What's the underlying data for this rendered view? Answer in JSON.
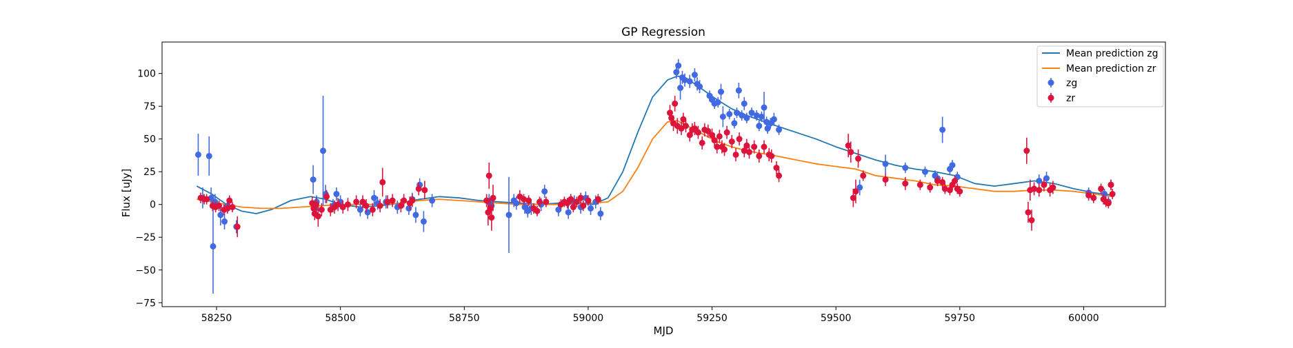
{
  "chart_data": {
    "type": "scatter",
    "title": "GP Regression",
    "xlabel": "MJD",
    "ylabel": "Flux [uJy]",
    "xlim": [
      58140,
      60165
    ],
    "ylim": [
      -78,
      124
    ],
    "xticks": [
      58250,
      58500,
      58750,
      59000,
      59250,
      59500,
      59750,
      60000
    ],
    "yticks": [
      -75,
      -50,
      -25,
      0,
      25,
      50,
      75,
      100
    ],
    "grid": false,
    "legend": "top-right",
    "colors": {
      "mean_zg": "#1f77b4",
      "mean_zr": "#ff7f0e",
      "points_zg": "#4169e1",
      "points_zr": "#dc143c"
    },
    "series": [
      {
        "name": "Mean prediction zg",
        "kind": "line",
        "x": [
          58210,
          58240,
          58270,
          58300,
          58330,
          58360,
          58400,
          58440,
          58470,
          58500,
          58540,
          58580,
          58620,
          58660,
          58700,
          58740,
          58780,
          58820,
          58860,
          58900,
          58940,
          58980,
          59010,
          59040,
          59070,
          59100,
          59130,
          59160,
          59180,
          59200,
          59230,
          59260,
          59290,
          59320,
          59350,
          59380,
          59420,
          59460,
          59500,
          59540,
          59580,
          59620,
          59660,
          59700,
          59740,
          59780,
          59820,
          59860,
          59900,
          59940,
          59980,
          60020,
          60060
        ],
        "y": [
          14,
          8,
          0,
          -5,
          -7,
          -4,
          3,
          6,
          4,
          0,
          -2,
          -1,
          1,
          4,
          6,
          5,
          3,
          2,
          1,
          0,
          1,
          1,
          0,
          5,
          25,
          55,
          82,
          95,
          98,
          96,
          88,
          80,
          73,
          68,
          64,
          60,
          55,
          50,
          44,
          39,
          34,
          30,
          27,
          25,
          22,
          16,
          14,
          16,
          18,
          16,
          12,
          9,
          7
        ]
      },
      {
        "name": "Mean prediction zr",
        "kind": "line",
        "x": [
          58210,
          58240,
          58270,
          58300,
          58340,
          58380,
          58420,
          58460,
          58500,
          58540,
          58580,
          58620,
          58660,
          58700,
          58740,
          58780,
          58820,
          58860,
          58900,
          58940,
          58980,
          59010,
          59040,
          59070,
          59100,
          59130,
          59160,
          59180,
          59200,
          59230,
          59260,
          59290,
          59320,
          59350,
          59380,
          59420,
          59460,
          59500,
          59540,
          59580,
          59620,
          59660,
          59700,
          59740,
          59780,
          59820,
          59860,
          59900,
          59940,
          59980,
          60020,
          60060
        ],
        "y": [
          4,
          2,
          0,
          -2,
          -3,
          -3,
          -2,
          -1,
          0,
          0,
          0,
          1,
          3,
          4,
          3,
          2,
          1,
          0,
          0,
          0,
          1,
          1,
          2,
          10,
          28,
          50,
          63,
          64,
          60,
          54,
          48,
          44,
          41,
          39,
          37,
          34,
          31,
          29,
          27,
          22,
          20,
          18,
          15,
          14,
          12,
          10,
          10,
          11,
          11,
          10,
          8,
          6
        ]
      },
      {
        "name": "zg",
        "kind": "errorbar",
        "x": [
          58213,
          58222,
          58235,
          58239,
          58243,
          58247,
          58258,
          58266,
          58272,
          58290,
          58445,
          58450,
          58452,
          58465,
          58470,
          58485,
          58492,
          58500,
          58540,
          58555,
          58568,
          58575,
          58592,
          58615,
          58638,
          58645,
          58652,
          58660,
          58668,
          58685,
          58800,
          58805,
          58840,
          58850,
          58855,
          58872,
          58878,
          58885,
          58905,
          58912,
          58940,
          58960,
          58972,
          58985,
          58995,
          59005,
          59015,
          59025,
          59178,
          59182,
          59186,
          59190,
          59195,
          59205,
          59215,
          59220,
          59225,
          59245,
          59250,
          59255,
          59262,
          59268,
          59272,
          59285,
          59295,
          59300,
          59304,
          59310,
          59315,
          59320,
          59330,
          59340,
          59345,
          59350,
          59355,
          59360,
          59362,
          59368,
          59375,
          59385,
          59548,
          59600,
          59640,
          59680,
          59700,
          59705,
          59715,
          59730,
          59735,
          59745,
          59910,
          59925,
          60010,
          60042,
          60050,
          60055
        ],
        "y": [
          38,
          5,
          37,
          5,
          -32,
          2,
          -8,
          -13,
          -1,
          -17,
          19,
          -3,
          2,
          41,
          8,
          -1,
          8,
          2,
          -4,
          -6,
          5,
          1,
          2,
          -2,
          -3,
          4,
          -8,
          15,
          -13,
          3,
          2,
          -1,
          -8,
          3,
          1,
          -2,
          -5,
          -3,
          0,
          10,
          -4,
          -6,
          2,
          -2,
          5,
          -3,
          2,
          -7,
          101,
          106,
          89,
          97,
          95,
          94,
          99,
          92,
          90,
          83,
          80,
          77,
          78,
          86,
          67,
          69,
          62,
          70,
          87,
          68,
          77,
          66,
          70,
          68,
          60,
          67,
          74,
          63,
          58,
          62,
          65,
          57,
          13,
          31,
          28,
          25,
          22,
          20,
          57,
          27,
          30,
          21,
          18,
          20,
          9,
          8,
          2,
          15
        ],
        "err": [
          16,
          8,
          15,
          8,
          36,
          6,
          8,
          6,
          5,
          5,
          11,
          6,
          5,
          42,
          7,
          5,
          5,
          5,
          5,
          5,
          6,
          5,
          5,
          5,
          5,
          5,
          6,
          5,
          8,
          5,
          6,
          5,
          29,
          5,
          5,
          5,
          5,
          5,
          5,
          5,
          5,
          5,
          5,
          5,
          5,
          5,
          5,
          5,
          5,
          5,
          9,
          5,
          5,
          5,
          5,
          5,
          5,
          4,
          4,
          4,
          4,
          6,
          8,
          4,
          4,
          4,
          6,
          4,
          5,
          4,
          4,
          4,
          4,
          4,
          12,
          4,
          4,
          4,
          5,
          4,
          6,
          7,
          4,
          4,
          4,
          4,
          10,
          4,
          4,
          4,
          5,
          5,
          4,
          4,
          4,
          4
        ]
      },
      {
        "name": "zr",
        "kind": "errorbar",
        "x": [
          58218,
          58225,
          58230,
          58242,
          58248,
          58255,
          58265,
          58272,
          58276,
          58282,
          58292,
          58443,
          58446,
          58448,
          58451,
          58455,
          58462,
          58472,
          58480,
          58488,
          58495,
          58505,
          58515,
          58532,
          58545,
          58552,
          58565,
          58580,
          58585,
          58595,
          58605,
          58622,
          58628,
          58640,
          58645,
          58658,
          58670,
          58795,
          58798,
          58800,
          58802,
          58805,
          58808,
          58862,
          58870,
          58880,
          58890,
          58897,
          58902,
          58915,
          58945,
          58952,
          58958,
          58965,
          58970,
          58977,
          58985,
          58990,
          59000,
          59020,
          59165,
          59168,
          59172,
          59175,
          59180,
          59188,
          59192,
          59197,
          59205,
          59210,
          59215,
          59222,
          59230,
          59235,
          59242,
          59250,
          59255,
          59260,
          59265,
          59270,
          59275,
          59280,
          59290,
          59298,
          59305,
          59315,
          59320,
          59325,
          59335,
          59345,
          59355,
          59365,
          59370,
          59380,
          59385,
          59525,
          59530,
          59535,
          59540,
          59545,
          59555,
          59600,
          59640,
          59670,
          59690,
          59705,
          59715,
          59720,
          59730,
          59735,
          59740,
          59745,
          59750,
          59885,
          59888,
          59892,
          59895,
          59900,
          59910,
          59920,
          59932,
          59938,
          60010,
          60020,
          60035,
          60040,
          60045,
          60050,
          60055,
          60058
        ],
        "y": [
          5,
          4,
          4,
          -1,
          -2,
          -1,
          -4,
          -3,
          3,
          -2,
          -17,
          1,
          -3,
          -7,
          0,
          -9,
          -4,
          6,
          -4,
          -2,
          0,
          -2,
          0,
          2,
          2,
          -1,
          -4,
          -1,
          17,
          2,
          3,
          -1,
          3,
          1,
          3,
          12,
          11,
          3,
          -6,
          22,
          -3,
          -10,
          5,
          6,
          4,
          3,
          -3,
          -5,
          2,
          2,
          0,
          2,
          1,
          4,
          -2,
          2,
          5,
          -1,
          3,
          4,
          70,
          66,
          62,
          77,
          60,
          58,
          65,
          60,
          53,
          57,
          58,
          55,
          47,
          57,
          56,
          53,
          49,
          44,
          52,
          44,
          42,
          55,
          48,
          38,
          50,
          41,
          45,
          40,
          44,
          37,
          44,
          38,
          37,
          28,
          22,
          45,
          40,
          5,
          10,
          35,
          22,
          19,
          16,
          15,
          13,
          18,
          17,
          12,
          11,
          15,
          18,
          12,
          10,
          41,
          -6,
          11,
          -12,
          12,
          11,
          15,
          11,
          13,
          7,
          5,
          12,
          4,
          2,
          1,
          15,
          8
        ],
        "err": [
          4,
          4,
          4,
          4,
          4,
          4,
          4,
          4,
          4,
          4,
          8,
          5,
          5,
          5,
          5,
          8,
          5,
          5,
          5,
          5,
          5,
          5,
          5,
          5,
          5,
          5,
          5,
          5,
          11,
          5,
          5,
          5,
          5,
          5,
          5,
          5,
          7,
          5,
          10,
          10,
          8,
          10,
          10,
          5,
          4,
          4,
          4,
          4,
          4,
          4,
          4,
          4,
          4,
          4,
          4,
          4,
          4,
          4,
          4,
          4,
          6,
          6,
          6,
          6,
          6,
          5,
          5,
          5,
          5,
          5,
          5,
          5,
          5,
          5,
          5,
          5,
          5,
          5,
          5,
          5,
          5,
          5,
          5,
          5,
          5,
          5,
          5,
          5,
          5,
          5,
          5,
          5,
          5,
          5,
          5,
          9,
          8,
          7,
          9,
          7,
          4,
          5,
          5,
          4,
          4,
          4,
          4,
          4,
          4,
          4,
          4,
          4,
          4,
          10,
          8,
          8,
          8,
          5,
          5,
          5,
          5,
          5,
          4,
          4,
          4,
          4,
          4,
          4,
          4,
          4
        ]
      }
    ]
  }
}
